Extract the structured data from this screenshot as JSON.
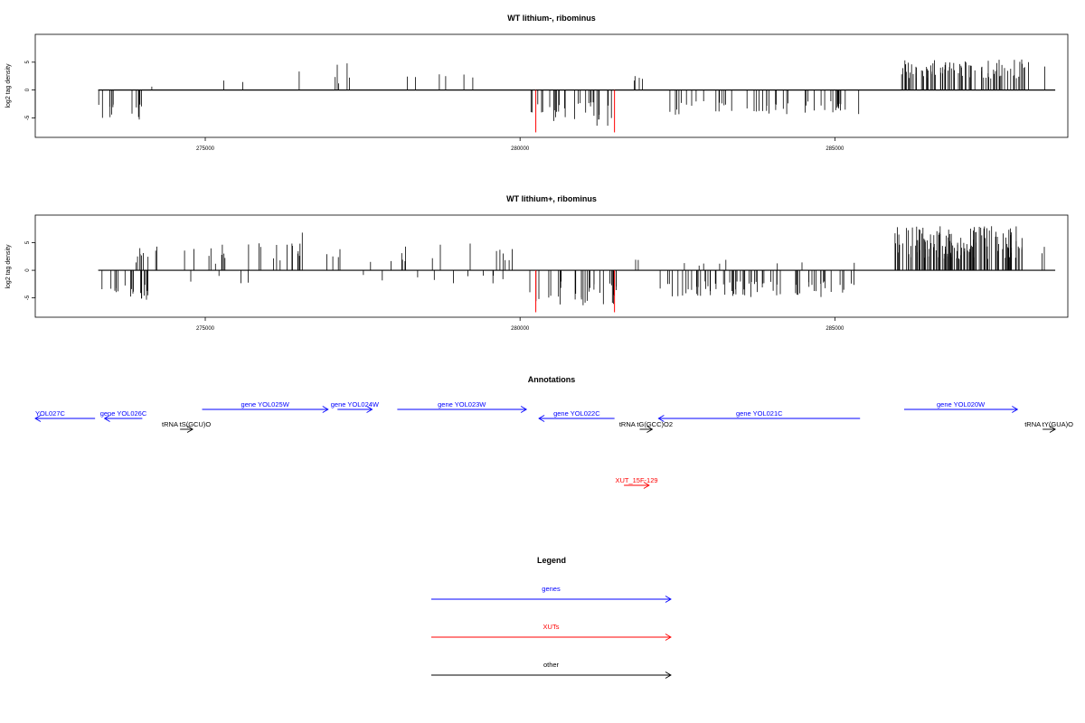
{
  "chart_data": [
    {
      "type": "bar",
      "title": "WT lithium-, ribominus",
      "ylabel": "log2 tag density",
      "xlabel": "",
      "xlim": [
        272300,
        288700
      ],
      "ylim": [
        -8.5,
        10
      ],
      "x_ticks": [
        275000,
        280000,
        285000
      ],
      "y_ticks": [
        -5,
        0,
        5
      ],
      "highlight_color": "#ff0000",
      "bar_color": "#000000",
      "segments": [
        {
          "x0": 273300,
          "x1": 274000,
          "sign": -1,
          "min": 2.5,
          "max": 5.5,
          "density": 14
        },
        {
          "x0": 274100,
          "x1": 274200,
          "sign": 1,
          "min": 0.5,
          "max": 1,
          "density": 1
        },
        {
          "x0": 274650,
          "x1": 277300,
          "sign": 1,
          "min": 1,
          "max": 5,
          "density": 8
        },
        {
          "x0": 278100,
          "x1": 280000,
          "sign": 1,
          "min": 1,
          "max": 3.5,
          "density": 6
        },
        {
          "x0": 281800,
          "x1": 281950,
          "sign": 1,
          "min": 1.5,
          "max": 3,
          "density": 4
        },
        {
          "x0": 280150,
          "x1": 281550,
          "sign": -1,
          "min": 2,
          "max": 6.5,
          "density": 30
        },
        {
          "x0": 282300,
          "x1": 285400,
          "sign": -1,
          "min": 2,
          "max": 4.5,
          "density": 50
        },
        {
          "x0": 286050,
          "x1": 288100,
          "sign": 1,
          "min": 2,
          "max": 5.5,
          "density": 90
        },
        {
          "x0": 288300,
          "x1": 288350,
          "sign": 1,
          "min": 4,
          "max": 5,
          "density": 1
        }
      ],
      "highlights": [
        {
          "x": 280250,
          "value": -7.6
        },
        {
          "x": 281500,
          "value": -7.6
        }
      ]
    },
    {
      "type": "bar",
      "title": "WT lithium+, ribominus",
      "ylabel": "log2 tag density",
      "xlabel": "",
      "xlim": [
        272300,
        288700
      ],
      "ylim": [
        -8.5,
        10
      ],
      "x_ticks": [
        275000,
        280000,
        285000
      ],
      "y_ticks": [
        -5,
        0,
        5
      ],
      "highlight_color": "#ff0000",
      "bar_color": "#000000",
      "segments": [
        {
          "x0": 273300,
          "x1": 274100,
          "sign": -1,
          "min": 2.5,
          "max": 6,
          "density": 20
        },
        {
          "x0": 273900,
          "x1": 274700,
          "sign": 1,
          "min": 1,
          "max": 5,
          "density": 10
        },
        {
          "x0": 274800,
          "x1": 280000,
          "sign": 1,
          "min": 1,
          "max": 5,
          "density": 40
        },
        {
          "x0": 276500,
          "x1": 276600,
          "sign": 1,
          "min": 6,
          "max": 7.5,
          "density": 1
        },
        {
          "x0": 274700,
          "x1": 280000,
          "sign": -1,
          "min": 0.5,
          "max": 2.5,
          "density": 14
        },
        {
          "x0": 280150,
          "x1": 281550,
          "sign": -1,
          "min": 2,
          "max": 6.5,
          "density": 30
        },
        {
          "x0": 281800,
          "x1": 281900,
          "sign": 1,
          "min": 1,
          "max": 2,
          "density": 2
        },
        {
          "x0": 282200,
          "x1": 285400,
          "sign": -1,
          "min": 2,
          "max": 5,
          "density": 70
        },
        {
          "x0": 282200,
          "x1": 285400,
          "sign": 1,
          "min": 0.5,
          "max": 2,
          "density": 8
        },
        {
          "x0": 285950,
          "x1": 288000,
          "sign": 1,
          "min": 2,
          "max": 8,
          "density": 130
        },
        {
          "x0": 288250,
          "x1": 288350,
          "sign": 1,
          "min": 3,
          "max": 5,
          "density": 2
        }
      ],
      "highlights": [
        {
          "x": 280250,
          "value": -7.6
        },
        {
          "x": 281500,
          "value": -7.6
        }
      ]
    }
  ],
  "annotations": {
    "title": "Annotations",
    "xlim": [
      272300,
      288700
    ],
    "features": [
      {
        "label": "YOL027C",
        "start": 272300,
        "end": 273250,
        "strand": "-",
        "row": 0,
        "color": "#0000ff",
        "label_side": "left"
      },
      {
        "label": "gene YOL026C",
        "start": 273400,
        "end": 274000,
        "strand": "-",
        "row": 0,
        "color": "#0000ff"
      },
      {
        "label": "tRNA tS(GCU)O",
        "start": 274600,
        "end": 274800,
        "strand": "+",
        "row": 1,
        "color": "#000000"
      },
      {
        "label": "gene YOL025W",
        "start": 274950,
        "end": 276950,
        "strand": "+",
        "row": -1,
        "color": "#0000ff"
      },
      {
        "label": "gene YOL024W",
        "start": 277100,
        "end": 277650,
        "strand": "+",
        "row": -1,
        "color": "#0000ff"
      },
      {
        "label": "gene YOL023W",
        "start": 278050,
        "end": 280100,
        "strand": "+",
        "row": -1,
        "color": "#0000ff"
      },
      {
        "label": "gene YOL022C",
        "start": 280300,
        "end": 281500,
        "strand": "-",
        "row": 0,
        "color": "#0000ff"
      },
      {
        "label": "tRNA tG(GCC)O2",
        "start": 281900,
        "end": 282100,
        "strand": "+",
        "row": 1,
        "color": "#000000"
      },
      {
        "label": "gene YOL021C",
        "start": 282200,
        "end": 285400,
        "strand": "-",
        "row": 0,
        "color": "#0000ff"
      },
      {
        "label": "gene YOL020W",
        "start": 286100,
        "end": 287900,
        "strand": "+",
        "row": -1,
        "color": "#0000ff"
      },
      {
        "label": "tRNA tY(GUA)O",
        "start": 288300,
        "end": 288500,
        "strand": "+",
        "row": 1,
        "color": "#000000"
      },
      {
        "label": "XUT_15F-129",
        "start": 281650,
        "end": 282050,
        "strand": "+",
        "row": 2,
        "color": "#ff0000"
      }
    ]
  },
  "legend": {
    "title": "Legend",
    "items": [
      {
        "label": "genes",
        "color": "#0000ff"
      },
      {
        "label": "XUTs",
        "color": "#ff0000"
      },
      {
        "label": "other",
        "color": "#000000"
      }
    ]
  }
}
